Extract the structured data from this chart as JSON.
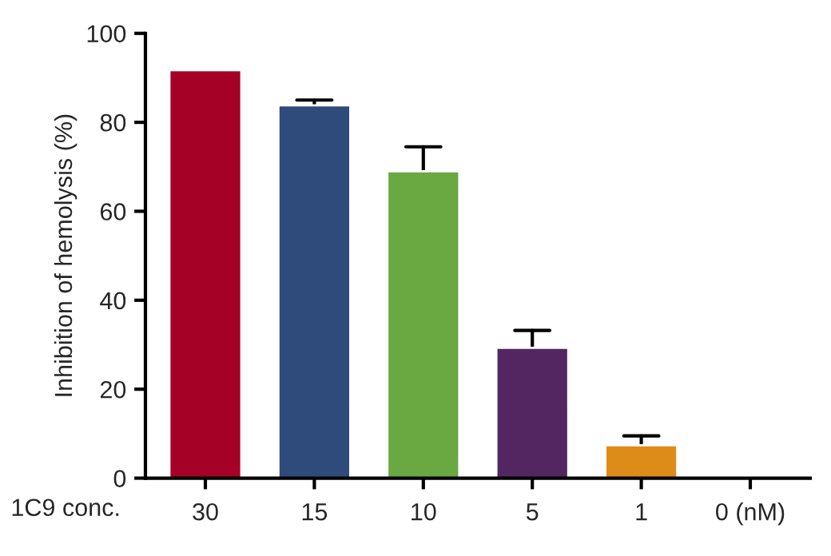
{
  "chart_data": {
    "type": "bar",
    "ylabel": "Inhibition of hemolysis (%)",
    "xlabel": "1C9 conc.",
    "categories": [
      "30",
      "15",
      "10",
      "5",
      "1",
      "0 (nM)"
    ],
    "values": [
      91.7,
      83.8,
      69.0,
      29.3,
      7.4,
      0
    ],
    "colors": [
      "#a50026",
      "#2f4b7c",
      "#6aa842",
      "#532662",
      "#dd8c19",
      null
    ],
    "errors": [
      null,
      [
        83.8,
        85.0
      ],
      [
        69.0,
        74.5
      ],
      [
        29.3,
        33.2
      ],
      [
        7.4,
        9.5
      ],
      null
    ],
    "ylim": [
      0,
      100
    ],
    "yticks": [
      0,
      20,
      40,
      60,
      80,
      100
    ],
    "grid": false
  }
}
